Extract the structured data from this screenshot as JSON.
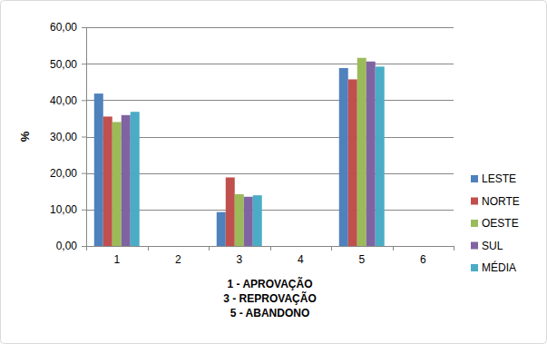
{
  "chart_data": {
    "type": "bar",
    "categories": [
      "1",
      "2",
      "3",
      "4",
      "5",
      "6"
    ],
    "series": [
      {
        "name": "LESTE",
        "color": "#4f81bd",
        "values": [
          41.8,
          null,
          9.3,
          null,
          48.8,
          null
        ]
      },
      {
        "name": "NORTE",
        "color": "#c0504d",
        "values": [
          35.5,
          null,
          18.8,
          null,
          45.7,
          null
        ]
      },
      {
        "name": "OESTE",
        "color": "#9bbb59",
        "values": [
          34.0,
          null,
          14.2,
          null,
          51.6,
          null
        ]
      },
      {
        "name": "SUL",
        "color": "#8064a2",
        "values": [
          35.9,
          null,
          13.5,
          null,
          50.6,
          null
        ]
      },
      {
        "name": "MÉDIA",
        "color": "#4bacc6",
        "values": [
          36.8,
          null,
          13.9,
          null,
          49.2,
          null
        ]
      }
    ],
    "xlabel": [
      "1 - APROVAÇÃO",
      "3 - REPROVAÇÃO",
      "5 - ABANDONO"
    ],
    "ylabel": "%",
    "ylim": [
      0,
      60
    ],
    "yticks": [
      {
        "value": 0,
        "label": "0,00"
      },
      {
        "value": 10,
        "label": "10,00"
      },
      {
        "value": 20,
        "label": "20,00"
      },
      {
        "value": 30,
        "label": "30,00"
      },
      {
        "value": 40,
        "label": "40,00"
      },
      {
        "value": 50,
        "label": "50,00"
      },
      {
        "value": 60,
        "label": "60,00"
      }
    ],
    "grid": true,
    "legend": "right"
  }
}
